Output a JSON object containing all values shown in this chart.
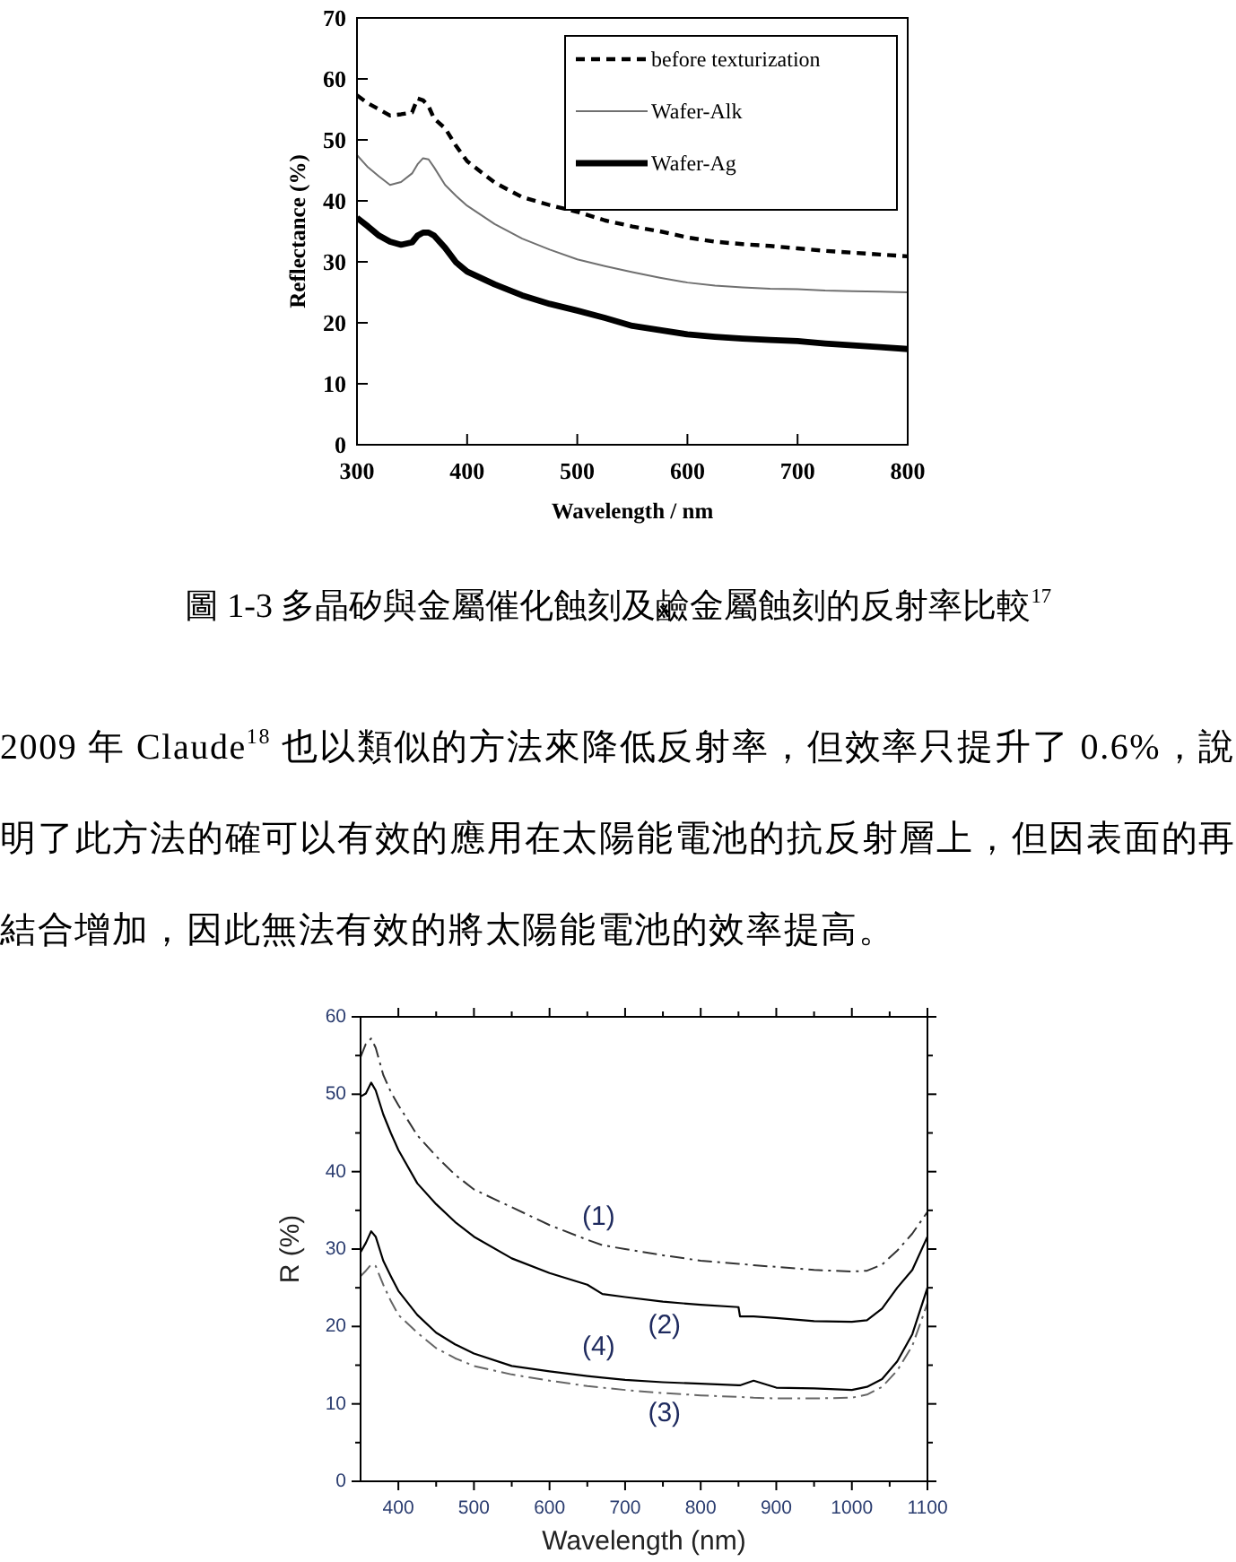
{
  "chart_data": [
    {
      "type": "line",
      "xlabel": "Wavelength / nm",
      "ylabel": "Reflectance (%)",
      "xlim": [
        300,
        800
      ],
      "ylim": [
        0,
        70
      ],
      "xticks": [
        300,
        400,
        500,
        600,
        700,
        800
      ],
      "yticks": [
        0,
        10,
        20,
        30,
        40,
        50,
        60,
        70
      ],
      "legend": "top right",
      "x": [
        300,
        310,
        320,
        330,
        340,
        350,
        355,
        360,
        365,
        370,
        380,
        390,
        400,
        425,
        450,
        475,
        500,
        525,
        550,
        575,
        600,
        625,
        650,
        675,
        700,
        725,
        750,
        775,
        800
      ],
      "series": [
        {
          "name": "before texturization",
          "color": "#000000",
          "line_style": "dashed",
          "values": [
            57.3,
            56,
            55,
            54,
            54.2,
            54.5,
            56.8,
            56.5,
            55.5,
            53.5,
            51.9,
            49,
            46.5,
            43,
            40.6,
            39.3,
            38.2,
            36.8,
            35.8,
            35,
            34,
            33.3,
            32.9,
            32.6,
            32.2,
            31.8,
            31.5,
            31.2,
            30.9
          ]
        },
        {
          "name": "Wafer-Alk",
          "color": "#707070",
          "line_style": "solid",
          "values": [
            47.5,
            45.5,
            44,
            42.6,
            43.1,
            44.5,
            46,
            47,
            46.8,
            45.5,
            42.6,
            40.8,
            39.2,
            36.2,
            33.8,
            32,
            30.4,
            29.3,
            28.3,
            27.4,
            26.6,
            26.1,
            25.8,
            25.6,
            25.5,
            25.3,
            25.2,
            25.1,
            25
          ]
        },
        {
          "name": "Wafer-Ag",
          "color": "#000000",
          "line_style": "solid",
          "values": [
            37.2,
            35.8,
            34.3,
            33.3,
            32.8,
            33.2,
            34.3,
            34.8,
            34.8,
            34.3,
            32.3,
            29.9,
            28.4,
            26.3,
            24.5,
            23.1,
            22,
            20.8,
            19.5,
            18.8,
            18.1,
            17.7,
            17.4,
            17.2,
            17,
            16.6,
            16.3,
            16,
            15.7
          ]
        }
      ],
      "annotations": [
        "圖 1-3 多晶矽與金屬催化蝕刻及鹼金屬蝕刻的反射率比較$^{17}$"
      ]
    },
    {
      "type": "line",
      "xlabel": "Wavelength (nm)",
      "ylabel": "R (%)",
      "xlim": [
        350,
        1100
      ],
      "ylim": [
        0,
        60
      ],
      "xticks": [
        400,
        {
          "value": 450,
          "label": null
        },
        500,
        {
          "value": 550,
          "label": null
        },
        600,
        {
          "value": 650,
          "label": null
        },
        700,
        {
          "value": 750,
          "label": null
        },
        800,
        {
          "value": 850,
          "label": null
        },
        900,
        {
          "value": 950,
          "label": null
        },
        1000,
        {
          "value": 1050,
          "label": null
        },
        1100
      ],
      "yticks": [
        0,
        {
          "value": 5,
          "label": null
        },
        10,
        {
          "value": 15,
          "label": null
        },
        20,
        {
          "value": 25,
          "label": null
        },
        30,
        {
          "value": 35,
          "label": null
        },
        40,
        {
          "value": 45,
          "label": null
        },
        50,
        {
          "value": 55,
          "label": null
        },
        60
      ],
      "x": [
        350,
        357,
        364,
        370,
        380,
        390,
        400,
        425,
        450,
        475,
        500,
        550,
        600,
        650,
        670,
        700,
        750,
        800,
        850,
        852,
        870,
        900,
        950,
        1000,
        1020,
        1040,
        1060,
        1080,
        1100
      ],
      "series": [
        {
          "name": "(1)",
          "color": "#333333",
          "line_style": "dashdot",
          "values": [
            54.8,
            56.5,
            57.2,
            56,
            52.5,
            50.3,
            48.6,
            44.7,
            42,
            39.6,
            37.7,
            35.4,
            33.1,
            31.2,
            30.5,
            30,
            29.2,
            28.5,
            28.1,
            28.1,
            27.9,
            27.7,
            27.3,
            27.1,
            27.2,
            28,
            29.8,
            32,
            34.8
          ]
        },
        {
          "name": "(2)",
          "color": "#000000",
          "line_style": "solid",
          "values": [
            49.7,
            50.1,
            51.5,
            50.5,
            47.4,
            45,
            42.8,
            38.5,
            35.8,
            33.5,
            31.6,
            28.8,
            26.9,
            25.4,
            24.2,
            23.8,
            23.2,
            22.8,
            22.5,
            21.3,
            21.3,
            21.1,
            20.7,
            20.6,
            20.8,
            22.3,
            25,
            27.3,
            31.6
          ]
        },
        {
          "name": "(3)",
          "color": "#666666",
          "line_style": "dashdot",
          "values": [
            26.5,
            27.2,
            28,
            27.8,
            25.4,
            23.3,
            21.5,
            19.2,
            17.2,
            15.9,
            14.9,
            13.8,
            13,
            12.3,
            12.1,
            11.8,
            11.4,
            11.1,
            10.9,
            10.9,
            10.8,
            10.7,
            10.7,
            10.8,
            11.2,
            12.2,
            14.3,
            17.5,
            23
          ]
        },
        {
          "name": "(4)",
          "color": "#000000",
          "line_style": "solid",
          "values": [
            29.6,
            30.8,
            32.3,
            31.6,
            28.5,
            26.5,
            24.6,
            21.5,
            19.2,
            17.7,
            16.5,
            14.9,
            14.2,
            13.6,
            13.4,
            13.1,
            12.8,
            12.6,
            12.4,
            12.4,
            13,
            12.1,
            12,
            11.8,
            12.2,
            13.2,
            15.5,
            19,
            25
          ]
        }
      ],
      "annotations": [
        "2009 年 Claude$^{18}$ 也以類似的方法來降低反射率，但效率只提升了 0.6%，說明了此方法的確可以有效的應用在太陽能電池的抗反射層上，但因表面的再結合增加，因此無法有效的將太陽能電池的效率提高。"
      ]
    }
  ]
}
